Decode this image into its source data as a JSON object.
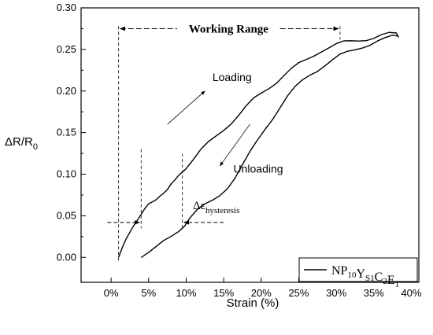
{
  "chart_data": {
    "type": "line",
    "xlabel": "Strain (%)",
    "ylabel": {
      "main": "ΔR/R",
      "sub": "0"
    },
    "x_unit": "%",
    "xlim": [
      -0.04,
      0.41
    ],
    "ylim": [
      -0.03,
      0.3
    ],
    "xticks": [
      "0%",
      "5%",
      "10%",
      "15%",
      "20%",
      "25%",
      "30%",
      "35%",
      "40%"
    ],
    "xtick_values": [
      0,
      0.05,
      0.1,
      0.15,
      0.2,
      0.25,
      0.3,
      0.35,
      0.4
    ],
    "yticks": [
      "0.00",
      "0.05",
      "0.10",
      "0.15",
      "0.20",
      "0.25",
      "0.30"
    ],
    "ytick_values": [
      0,
      0.05,
      0.1,
      0.15,
      0.2,
      0.25,
      0.3
    ],
    "grid": false,
    "legend_position": "bottom-right",
    "series": [
      {
        "name": "NP10YS1C2E1",
        "legend_parts": [
          {
            "text": "NP",
            "sub": "10"
          },
          {
            "text": "Y",
            "sub": "S1"
          },
          {
            "text": "C",
            "sub": "2"
          },
          {
            "text": "E",
            "sub": "1"
          }
        ],
        "color": "#000000",
        "loading": {
          "x": [
            0.01,
            0.015,
            0.02,
            0.025,
            0.03,
            0.035,
            0.04,
            0.045,
            0.05,
            0.055,
            0.06,
            0.065,
            0.07,
            0.075,
            0.08,
            0.085,
            0.09,
            0.095,
            0.1,
            0.11,
            0.12,
            0.13,
            0.14,
            0.15,
            0.16,
            0.17,
            0.18,
            0.19,
            0.2,
            0.21,
            0.22,
            0.23,
            0.24,
            0.25,
            0.26,
            0.27,
            0.28,
            0.29,
            0.3,
            0.31,
            0.32,
            0.33,
            0.34,
            0.35,
            0.36,
            0.37,
            0.38,
            0.383
          ],
          "y": [
            0.0,
            0.01,
            0.02,
            0.03,
            0.04,
            0.047,
            0.052,
            0.057,
            0.062,
            0.066,
            0.071,
            0.076,
            0.078,
            0.08,
            0.086,
            0.092,
            0.1,
            0.105,
            0.108,
            0.117,
            0.128,
            0.138,
            0.147,
            0.155,
            0.162,
            0.17,
            0.18,
            0.19,
            0.198,
            0.205,
            0.211,
            0.218,
            0.225,
            0.232,
            0.238,
            0.244,
            0.249,
            0.252,
            0.255,
            0.258,
            0.26,
            0.262,
            0.263,
            0.264,
            0.266,
            0.268,
            0.269,
            0.266
          ]
        },
        "unloading": {
          "x": [
            0.383,
            0.375,
            0.365,
            0.355,
            0.345,
            0.335,
            0.325,
            0.315,
            0.305,
            0.295,
            0.285,
            0.275,
            0.265,
            0.255,
            0.245,
            0.235,
            0.225,
            0.215,
            0.205,
            0.195,
            0.185,
            0.175,
            0.165,
            0.155,
            0.145,
            0.135,
            0.125,
            0.115,
            0.105,
            0.098,
            0.09,
            0.08,
            0.07,
            0.06,
            0.05,
            0.04
          ],
          "y": [
            0.266,
            0.265,
            0.262,
            0.26,
            0.257,
            0.254,
            0.25,
            0.246,
            0.242,
            0.237,
            0.232,
            0.226,
            0.22,
            0.212,
            0.203,
            0.193,
            0.181,
            0.168,
            0.155,
            0.14,
            0.125,
            0.11,
            0.096,
            0.085,
            0.076,
            0.068,
            0.062,
            0.056,
            0.048,
            0.04,
            0.033,
            0.025,
            0.018,
            0.011,
            0.006,
            0.002
          ]
        }
      }
    ],
    "annotations": {
      "working_range": {
        "label": "Working Range",
        "x_start": 0.01,
        "x_end": 0.305,
        "y": 0.275
      },
      "loading_label": "Loading",
      "unloading_label": "Unloading",
      "hysteresis": {
        "symbol": "Δε",
        "sub": "hysteresis",
        "x_start": 0.04,
        "x_end": 0.095,
        "y": 0.042
      },
      "loading_arrow": {
        "from": [
          0.075,
          0.16
        ],
        "to": [
          0.125,
          0.2
        ]
      },
      "unloading_arrow": {
        "from": [
          0.185,
          0.16
        ],
        "to": [
          0.145,
          0.11
        ]
      }
    }
  }
}
